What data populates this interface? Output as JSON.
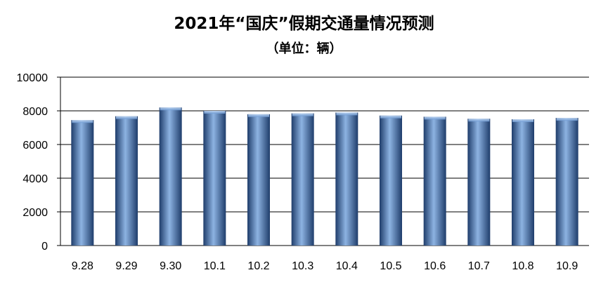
{
  "chart_data": {
    "type": "bar",
    "title": "2021年“国庆”假期交通量情况预测",
    "subtitle": "（单位：辆）",
    "xlabel": "",
    "ylabel": "",
    "categories": [
      "9.28",
      "9.29",
      "9.30",
      "10.1",
      "10.2",
      "10.3",
      "10.4",
      "10.5",
      "10.6",
      "10.7",
      "10.8",
      "10.9"
    ],
    "values": [
      7450,
      7680,
      8200,
      8000,
      7800,
      7850,
      7900,
      7720,
      7650,
      7530,
      7500,
      7580
    ],
    "ylim": [
      0,
      10000
    ],
    "yticks": [
      "0",
      "2000",
      "4000",
      "6000",
      "8000",
      "10000"
    ],
    "grid": true,
    "legend": "none",
    "colors": {
      "bar": "#4a7ebb",
      "bar_light": "#8db3e2",
      "bar_dark": "#1f3d6b",
      "grid": "#000000"
    }
  }
}
